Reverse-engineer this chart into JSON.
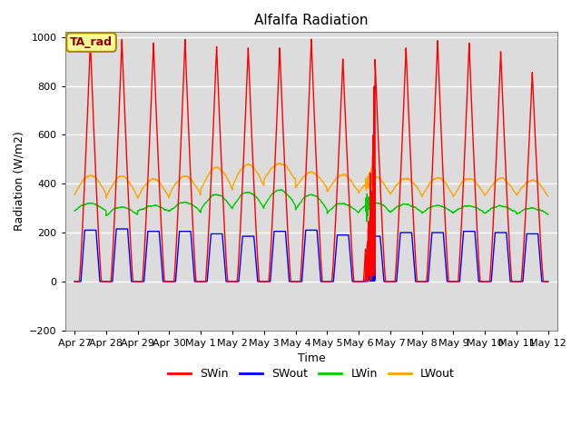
{
  "title": "Alfalfa Radiation",
  "xlabel": "Time",
  "ylabel": "Radiation (W/m2)",
  "ylim": [
    -200,
    1020
  ],
  "yticks": [
    -200,
    0,
    200,
    400,
    600,
    800,
    1000
  ],
  "background_color": "#dcdcdc",
  "legend_label": "TA_rad",
  "series": {
    "SWin": {
      "color": "#ff0000",
      "label": "SWin"
    },
    "SWout": {
      "color": "#0000ff",
      "label": "SWout"
    },
    "LWin": {
      "color": "#00cc00",
      "label": "LWin"
    },
    "LWout": {
      "color": "#ffa500",
      "label": "LWout"
    }
  },
  "x_tick_labels": [
    "Apr 27",
    "Apr 28",
    "Apr 29",
    "Apr 30",
    "May 1",
    "May 2",
    "May 3",
    "May 4",
    "May 5",
    "May 6",
    "May 7",
    "May 8",
    "May 9",
    "May 10",
    "May 11",
    "May 12"
  ],
  "n_days": 15,
  "SWin_peaks": [
    980,
    990,
    975,
    990,
    960,
    955,
    955,
    990,
    910,
    970,
    955,
    985,
    975,
    940,
    855
  ],
  "SWout_peaks": [
    210,
    215,
    205,
    205,
    195,
    185,
    205,
    210,
    190,
    185,
    200,
    200,
    205,
    200,
    195
  ],
  "LWin_base": [
    290,
    270,
    285,
    285,
    295,
    300,
    310,
    295,
    280,
    285,
    285,
    280,
    280,
    280,
    275
  ],
  "LWin_peak": [
    320,
    305,
    310,
    325,
    355,
    365,
    375,
    355,
    320,
    325,
    315,
    310,
    310,
    308,
    300
  ],
  "LWout_base": [
    355,
    340,
    340,
    350,
    375,
    390,
    415,
    380,
    365,
    360,
    355,
    350,
    350,
    352,
    350
  ],
  "LWout_peak": [
    435,
    430,
    420,
    430,
    465,
    478,
    482,
    448,
    435,
    428,
    422,
    422,
    422,
    418,
    412
  ]
}
